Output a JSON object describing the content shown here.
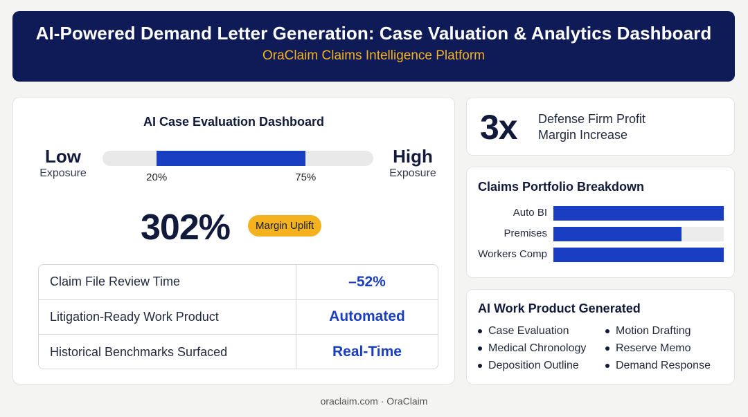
{
  "header": {
    "title": "AI-Powered Demand Letter Generation: Case Valuation & Analytics Dashboard",
    "subtitle": "OraClaim Claims Intelligence Platform"
  },
  "evaluation": {
    "title": "AI Case Evaluation Dashboard",
    "low": {
      "big": "Low",
      "small": "Exposure"
    },
    "high": {
      "big": "High",
      "small": "Exposure"
    },
    "range": {
      "start_pct": 20,
      "end_pct": 75,
      "start_label": "20%",
      "end_label": "75%"
    },
    "big_stat": "302%",
    "pill": "Margin Uplift",
    "metrics": [
      {
        "label": "Claim File Review Time",
        "value": "–52%"
      },
      {
        "label": "Litigation-Ready Work Product",
        "value": "Automated"
      },
      {
        "label": "Historical Benchmarks Surfaced",
        "value": "Real-Time"
      }
    ]
  },
  "stat": {
    "value": "3x",
    "line1": "Defense Firm Profit",
    "line2": "Margin Increase"
  },
  "portfolio": {
    "title": "Claims Portfolio Breakdown",
    "bars": [
      {
        "label": "Auto BI",
        "fraction": 1.0
      },
      {
        "label": "Premises",
        "fraction": 0.75
      },
      {
        "label": "Workers Comp",
        "fraction": 1.0
      }
    ]
  },
  "work_product": {
    "title": "AI Work Product Generated",
    "items": [
      "Case Evaluation",
      "Motion Drafting",
      "Medical Chronology",
      "Reserve Memo",
      "Deposition Outline",
      "Demand Response"
    ]
  },
  "footer": "oraclaim.com · OraClaim",
  "colors": {
    "navy": "#0f1b57",
    "accent": "#1a3ec2",
    "gold": "#f5b21f"
  }
}
